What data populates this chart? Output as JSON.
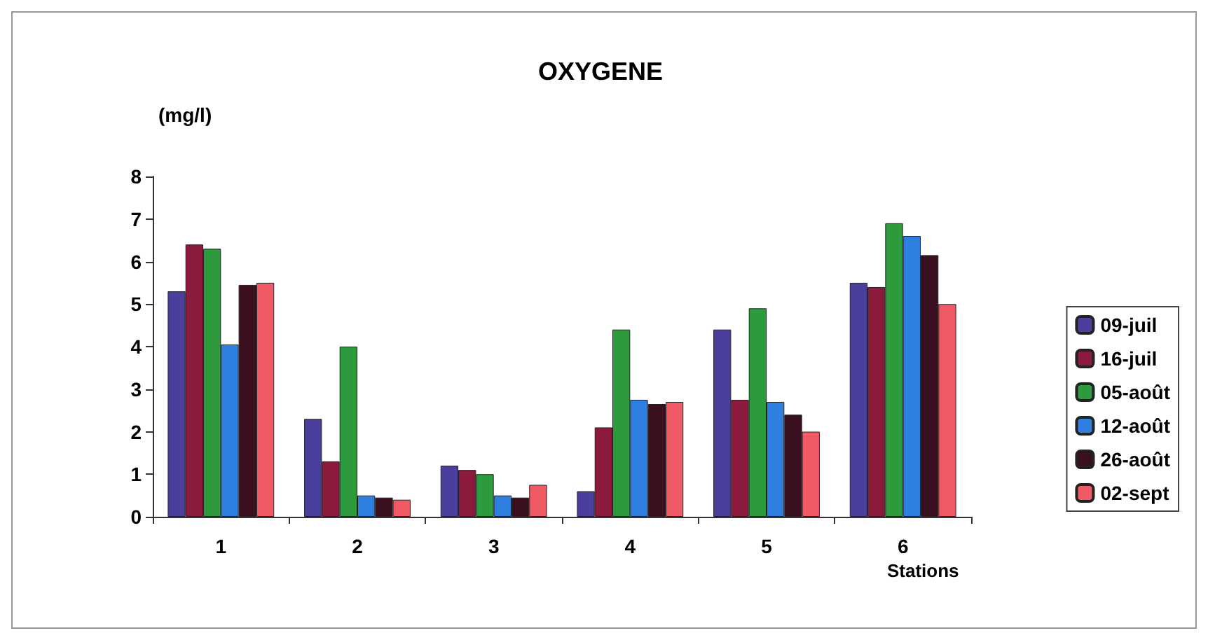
{
  "chart_data": {
    "type": "bar",
    "title": "OXYGENE",
    "ylabel": "(mg/l)",
    "xlabel": "Stations",
    "categories": [
      "1",
      "2",
      "3",
      "4",
      "5",
      "6"
    ],
    "series": [
      {
        "name": "09-juil",
        "color": "#4b3f9e",
        "values": [
          5.3,
          2.3,
          1.2,
          0.6,
          4.4,
          5.5
        ]
      },
      {
        "name": "16-juil",
        "color": "#8b1a3c",
        "values": [
          6.4,
          1.3,
          1.1,
          2.1,
          2.75,
          5.4
        ]
      },
      {
        "name": "05-août",
        "color": "#2e9a3e",
        "values": [
          6.3,
          4.0,
          1.0,
          4.4,
          4.9,
          6.9
        ]
      },
      {
        "name": "12-août",
        "color": "#2f7fe0",
        "values": [
          4.05,
          0.5,
          0.5,
          2.75,
          2.7,
          6.6
        ]
      },
      {
        "name": "26-août",
        "color": "#3a1020",
        "values": [
          5.45,
          0.45,
          0.45,
          2.65,
          2.4,
          6.15
        ]
      },
      {
        "name": "02-sept",
        "color": "#f05a64",
        "values": [
          5.5,
          0.4,
          0.75,
          2.7,
          2.0,
          5.0
        ]
      }
    ],
    "ylim": [
      0,
      8
    ],
    "yticks": [
      0,
      1,
      2,
      3,
      4,
      5,
      6,
      7,
      8
    ],
    "grid": false,
    "legend": "right"
  }
}
